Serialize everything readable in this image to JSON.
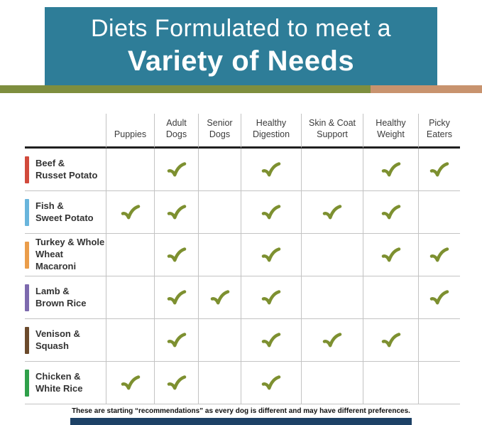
{
  "header": {
    "title_line1": "Diets Formulated to meet a",
    "title_line2": "Variety of Needs"
  },
  "colors": {
    "banner_bg": "#2e7d98",
    "strip_olive": "#7e8e3e",
    "strip_tan": "#c8936e",
    "check_green": "#7d9030",
    "grid_line": "#c3c3c3",
    "header_rule": "#1f1f1f",
    "bottom_bar": "#1d4166"
  },
  "chart_data": {
    "type": "table",
    "title": "Diets Formulated to meet a Variety of Needs",
    "columns": [
      "Puppies",
      "Adult Dogs",
      "Senior Dogs",
      "Healthy Digestion",
      "Skin & Coat Support",
      "Healthy Weight",
      "Picky Eaters"
    ],
    "rows": [
      {
        "name": [
          "Beef &",
          "Russet Potato"
        ],
        "accent": "#d14a3c",
        "checks": [
          false,
          true,
          false,
          true,
          false,
          true,
          true
        ]
      },
      {
        "name": [
          "Fish &",
          "Sweet Potato"
        ],
        "accent": "#69b5dc",
        "checks": [
          true,
          true,
          false,
          true,
          true,
          true,
          false
        ]
      },
      {
        "name": [
          "Turkey & Whole",
          "Wheat Macaroni"
        ],
        "accent": "#ea9d4b",
        "checks": [
          false,
          true,
          false,
          true,
          false,
          true,
          true
        ]
      },
      {
        "name": [
          "Lamb &",
          "Brown Rice"
        ],
        "accent": "#7d6aae",
        "checks": [
          false,
          true,
          true,
          true,
          false,
          false,
          true
        ]
      },
      {
        "name": [
          "Venison &",
          "Squash"
        ],
        "accent": "#6b4a2c",
        "checks": [
          false,
          true,
          false,
          true,
          true,
          true,
          false
        ]
      },
      {
        "name": [
          "Chicken &",
          "White Rice"
        ],
        "accent": "#2fa04a",
        "checks": [
          true,
          true,
          false,
          true,
          false,
          false,
          false
        ]
      }
    ]
  },
  "footer": {
    "note": "These are starting “recommendations” as every dog is different and may have different preferences."
  }
}
